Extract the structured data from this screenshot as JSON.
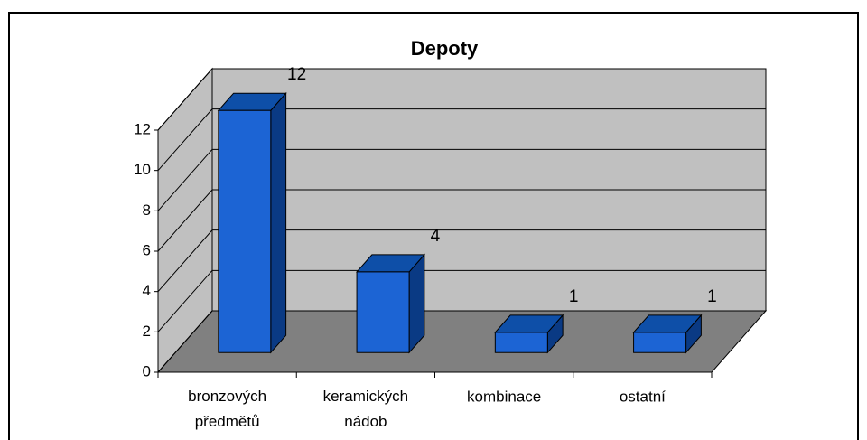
{
  "chart_data": {
    "type": "bar",
    "title": "Depoty",
    "categories": [
      "bronzových předmětů",
      "keramických nádob",
      "kombinace",
      "ostatní"
    ],
    "values": [
      12,
      4,
      1,
      1
    ],
    "color": "#1c64d4",
    "ylim": [
      0,
      12
    ],
    "yticks": [
      0,
      2,
      4,
      6,
      8,
      10,
      12
    ],
    "grid": true
  }
}
